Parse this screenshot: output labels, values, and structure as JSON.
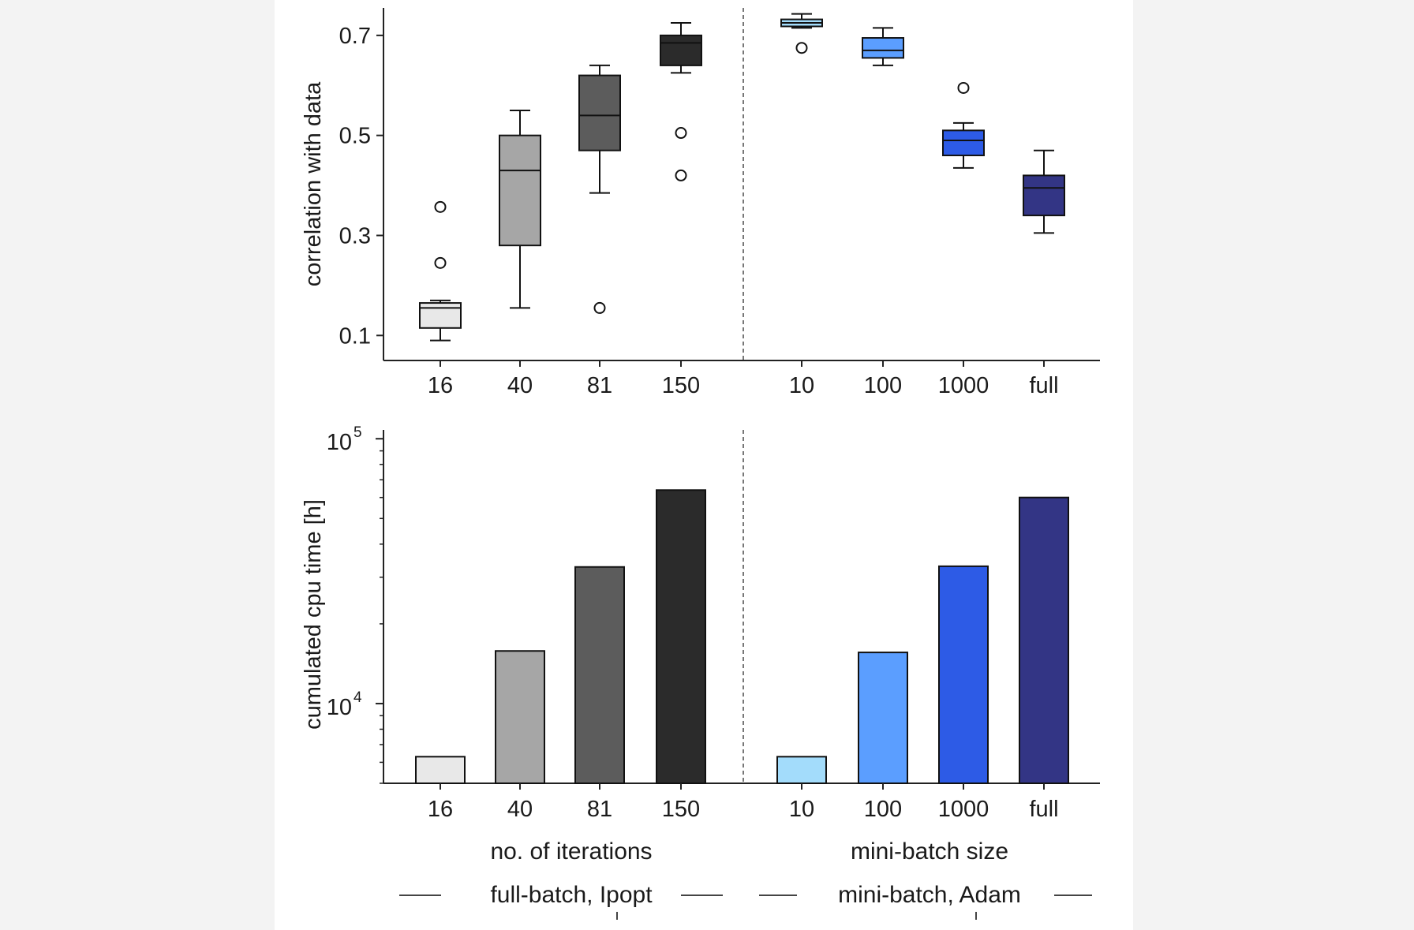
{
  "colors": {
    "full_batch": [
      "#e8e8e8",
      "#a6a6a6",
      "#5c5c5c",
      "#2b2b2b"
    ],
    "mini_batch": [
      "#a3dcfb",
      "#5b9eff",
      "#2d5be6",
      "#333585"
    ],
    "divider": "#555555",
    "axis": "#222222"
  },
  "chart_data": [
    {
      "type": "box",
      "ylabel": "correlation with data",
      "ylim": [
        0.05,
        0.755
      ],
      "yticks": [
        0.1,
        0.3,
        0.5,
        0.7
      ],
      "ytick_labels": [
        "0.1",
        "0.3",
        "0.5",
        "0.7"
      ],
      "groups": [
        {
          "name": "full-batch, Ipopt",
          "xlabel": "no. of iterations",
          "categories": [
            "16",
            "40",
            "81",
            "150"
          ],
          "boxes": [
            {
              "whisker_low": 0.09,
              "q1": 0.115,
              "median": 0.155,
              "q3": 0.165,
              "whisker_high": 0.17,
              "outliers": [
                0.245,
                0.357
              ]
            },
            {
              "whisker_low": 0.155,
              "q1": 0.28,
              "median": 0.43,
              "q3": 0.5,
              "whisker_high": 0.55,
              "outliers": []
            },
            {
              "whisker_low": 0.385,
              "q1": 0.47,
              "median": 0.54,
              "q3": 0.62,
              "whisker_high": 0.64,
              "outliers": [
                0.155
              ]
            },
            {
              "whisker_low": 0.625,
              "q1": 0.64,
              "median": 0.685,
              "q3": 0.7,
              "whisker_high": 0.725,
              "outliers": [
                0.505,
                0.42
              ]
            }
          ]
        },
        {
          "name": "mini-batch, Adam",
          "xlabel": "mini-batch size",
          "categories": [
            "10",
            "100",
            "1000",
            "full"
          ],
          "boxes": [
            {
              "whisker_low": 0.715,
              "q1": 0.718,
              "median": 0.725,
              "q3": 0.732,
              "whisker_high": 0.743,
              "outliers": [
                0.675
              ]
            },
            {
              "whisker_low": 0.64,
              "q1": 0.655,
              "median": 0.67,
              "q3": 0.695,
              "whisker_high": 0.715,
              "outliers": []
            },
            {
              "whisker_low": 0.435,
              "q1": 0.46,
              "median": 0.49,
              "q3": 0.51,
              "whisker_high": 0.525,
              "outliers": [
                0.595
              ]
            },
            {
              "whisker_low": 0.305,
              "q1": 0.34,
              "median": 0.395,
              "q3": 0.42,
              "whisker_high": 0.47,
              "outliers": []
            }
          ]
        }
      ]
    },
    {
      "type": "bar",
      "ylabel": "cumulated cpu time [h]",
      "yscale": "log",
      "ylim": [
        5000,
        108000
      ],
      "yticks": [
        10000,
        100000
      ],
      "ytick_labels": [
        {
          "base": "10",
          "exp": "4"
        },
        {
          "base": "10",
          "exp": "5"
        }
      ],
      "groups": [
        {
          "name": "full-batch, Ipopt",
          "xlabel": "no. of iterations",
          "categories": [
            "16",
            "40",
            "81",
            "150"
          ],
          "values": [
            6300,
            15800,
            32800,
            64000
          ]
        },
        {
          "name": "mini-batch, Adam",
          "xlabel": "mini-batch size",
          "categories": [
            "10",
            "100",
            "1000",
            "full"
          ],
          "values": [
            6300,
            15600,
            33000,
            60000
          ]
        }
      ]
    }
  ]
}
